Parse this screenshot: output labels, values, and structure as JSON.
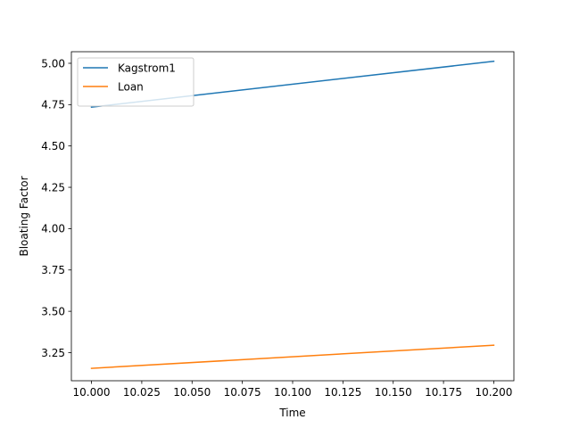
{
  "chart_data": {
    "type": "line",
    "xlabel": "Time",
    "ylabel": "Bloating Factor",
    "xlim": [
      9.99,
      10.21
    ],
    "ylim": [
      3.08,
      5.07
    ],
    "xticks": [
      10.0,
      10.025,
      10.05,
      10.075,
      10.1,
      10.125,
      10.15,
      10.175,
      10.2
    ],
    "xtick_labels": [
      "10.000",
      "10.025",
      "10.050",
      "10.075",
      "10.100",
      "10.125",
      "10.150",
      "10.175",
      "10.200"
    ],
    "yticks": [
      3.25,
      3.5,
      3.75,
      4.0,
      4.25,
      4.5,
      4.75,
      5.0
    ],
    "ytick_labels": [
      "3.25",
      "3.50",
      "3.75",
      "4.00",
      "4.25",
      "4.50",
      "4.75",
      "5.00"
    ],
    "grid": false,
    "legend_position": "top-left",
    "series": [
      {
        "name": "Kagstrom1",
        "color": "#1f77b4",
        "x": [
          10.0,
          10.2
        ],
        "y": [
          4.735,
          5.012
        ]
      },
      {
        "name": "Loan",
        "color": "#ff7f0e",
        "x": [
          10.0,
          10.2
        ],
        "y": [
          3.155,
          3.295
        ]
      }
    ]
  }
}
